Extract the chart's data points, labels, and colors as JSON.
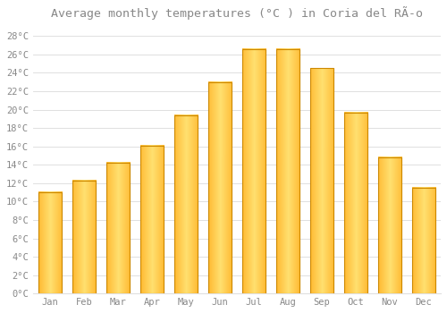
{
  "title": "Average monthly temperatures (°C ) in Coria del RÃ­o",
  "months": [
    "Jan",
    "Feb",
    "Mar",
    "Apr",
    "May",
    "Jun",
    "Jul",
    "Aug",
    "Sep",
    "Oct",
    "Nov",
    "Dec"
  ],
  "values": [
    11.0,
    12.3,
    14.2,
    16.1,
    19.4,
    23.0,
    26.6,
    26.6,
    24.5,
    19.7,
    14.8,
    11.5
  ],
  "bar_color_light": "#FFD966",
  "bar_color_mid": "#FFA820",
  "bar_color_dark": "#E07800",
  "bar_edge_color": "#CC8800",
  "background_color": "#ffffff",
  "plot_bg_color": "#f8f8f8",
  "grid_color": "#e0e0e0",
  "text_color": "#888888",
  "ylim": [
    0,
    29
  ],
  "yticks": [
    0,
    2,
    4,
    6,
    8,
    10,
    12,
    14,
    16,
    18,
    20,
    22,
    24,
    26,
    28
  ],
  "title_fontsize": 9.5,
  "tick_fontsize": 7.5
}
